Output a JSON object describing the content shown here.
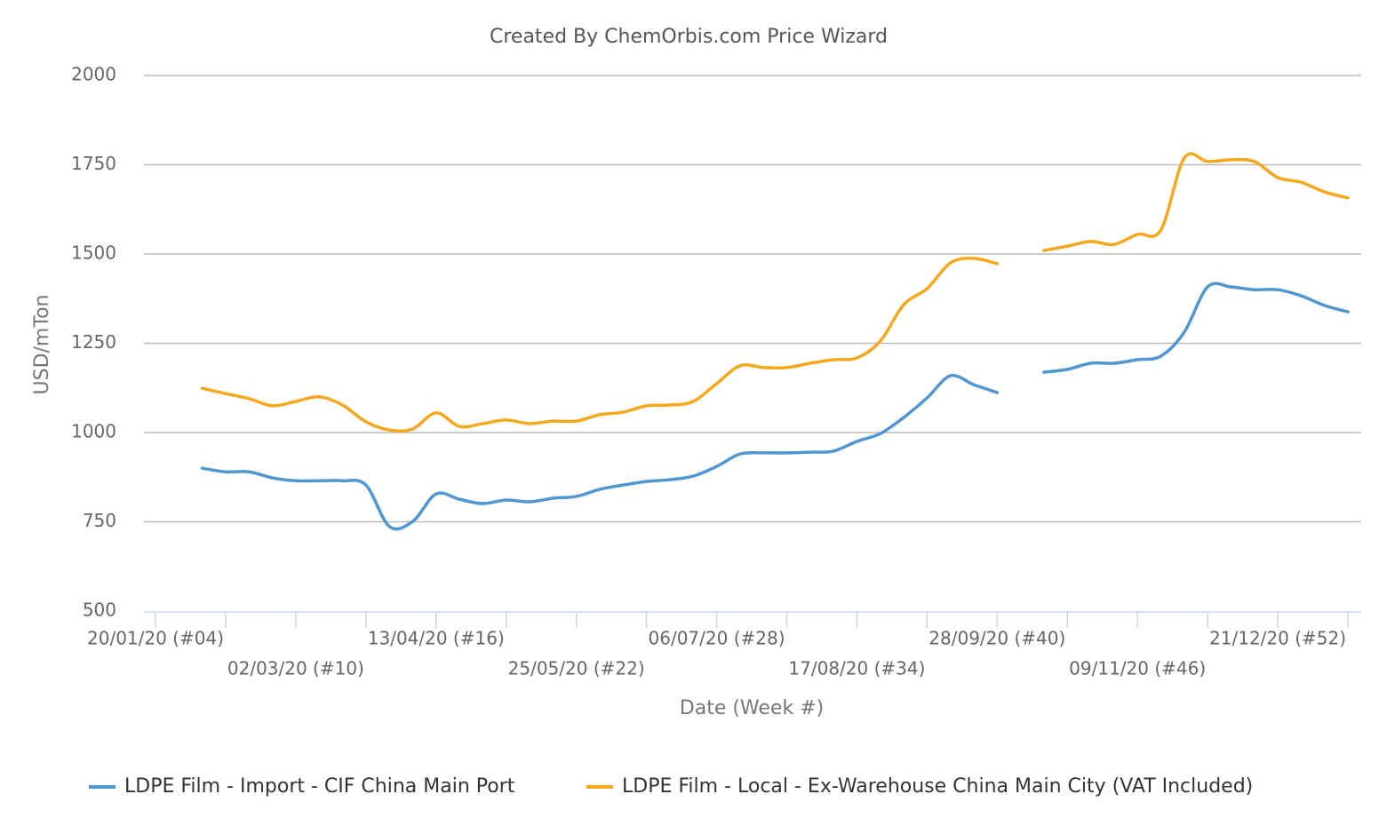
{
  "chart_data": {
    "type": "line",
    "title": "Created By ChemOrbis.com Price Wizard",
    "x_label": "Date (Week #)",
    "y_label": "USD/mTon",
    "categories": [
      "20/01/20 (#04)",
      null,
      null,
      null,
      null,
      null,
      "02/03/20 (#10)",
      null,
      null,
      null,
      null,
      null,
      "13/04/20 (#16)",
      null,
      null,
      null,
      null,
      null,
      "25/05/20 (#22)",
      null,
      null,
      null,
      null,
      null,
      "06/07/20 (#28)",
      null,
      null,
      null,
      null,
      null,
      "17/08/20 (#34)",
      null,
      null,
      null,
      null,
      null,
      "28/09/20 (#40)",
      null,
      null,
      null,
      null,
      null,
      "09/11/20 (#46)",
      null,
      null,
      null,
      null,
      null,
      "21/12/20 (#52)",
      null,
      null,
      null
    ],
    "series": [
      {
        "name": "LDPE Film - Import - CIF China Main Port",
        "color": "#5097d2",
        "values": [
          null,
          null,
          900,
          890,
          890,
          873,
          865,
          865,
          865,
          853,
          737,
          751,
          828,
          813,
          801,
          811,
          806,
          816,
          821,
          841,
          853,
          863,
          868,
          878,
          905,
          940,
          943,
          943,
          945,
          948,
          975,
          997,
          1042,
          1097,
          1159,
          1134,
          1112,
          null,
          1169,
          1177,
          1194,
          1194,
          1204,
          1214,
          1281,
          1408,
          1408,
          1400,
          1400,
          1383,
          1356,
          1338
        ]
      },
      {
        "name": "LDPE Film - Local - Ex-Warehouse China Main City (VAT Included)",
        "color": "#f5a81e",
        "values": [
          null,
          null,
          1124,
          1109,
          1095,
          1075,
          1087,
          1100,
          1077,
          1030,
          1007,
          1010,
          1055,
          1017,
          1025,
          1035,
          1025,
          1032,
          1032,
          1050,
          1057,
          1075,
          1077,
          1087,
          1137,
          1187,
          1182,
          1182,
          1194,
          1204,
          1209,
          1256,
          1358,
          1403,
          1475,
          1488,
          1473,
          null,
          1510,
          1522,
          1535,
          1527,
          1555,
          1567,
          1769,
          1759,
          1764,
          1759,
          1714,
          1701,
          1674,
          1657
        ]
      }
    ],
    "ylim": [
      500,
      2000
    ],
    "yticks": [
      500,
      750,
      1000,
      1250,
      1500,
      1750,
      2000
    ],
    "grid": true
  }
}
